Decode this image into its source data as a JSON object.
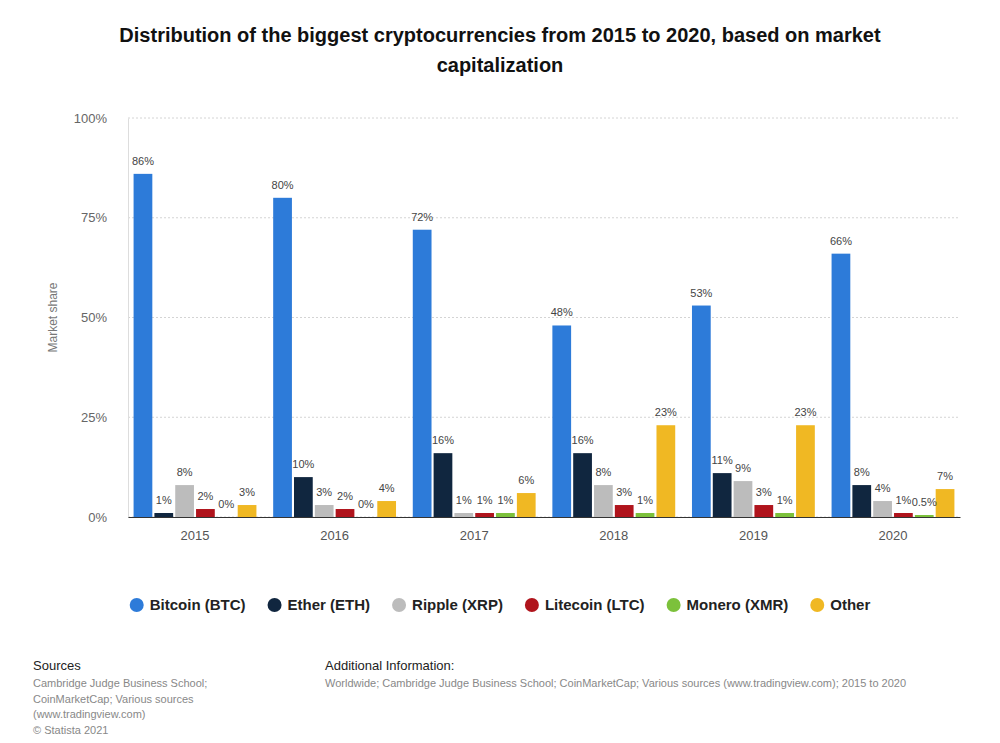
{
  "chart_data": {
    "type": "bar",
    "title": "Distribution of the biggest cryptocurrencies from 2015 to 2020, based on market capitalization",
    "y_label": "Market share",
    "categories": [
      "2015",
      "2016",
      "2017",
      "2018",
      "2019",
      "2020"
    ],
    "series": [
      {
        "name": "Bitcoin (BTC)",
        "color": "#2d7bd9",
        "values": [
          86,
          80,
          72,
          48,
          53,
          66
        ],
        "value_labels": [
          "86%",
          "80%",
          "72%",
          "48%",
          "53%",
          "66%"
        ]
      },
      {
        "name": "Ether (ETH)",
        "color": "#10263f",
        "values": [
          1,
          10,
          16,
          16,
          11,
          8
        ],
        "value_labels": [
          "1%",
          "10%",
          "16%",
          "16%",
          "11%",
          "8%"
        ]
      },
      {
        "name": "Ripple (XRP)",
        "color": "#bcbcbc",
        "values": [
          8,
          3,
          1,
          8,
          9,
          4
        ],
        "value_labels": [
          "8%",
          "3%",
          "1%",
          "8%",
          "9%",
          "4%"
        ]
      },
      {
        "name": "Litecoin (LTC)",
        "color": "#b0141c",
        "values": [
          2,
          2,
          1,
          3,
          3,
          1
        ],
        "value_labels": [
          "2%",
          "2%",
          "1%",
          "3%",
          "3%",
          "1%"
        ]
      },
      {
        "name": "Monero (XMR)",
        "color": "#7cc13b",
        "values": [
          0,
          0,
          1,
          1,
          1,
          0.5
        ],
        "value_labels": [
          "0%",
          "0%",
          "1%",
          "1%",
          "1%",
          "0.5%"
        ]
      },
      {
        "name": "Other",
        "color": "#f0b823",
        "values": [
          3,
          4,
          6,
          23,
          23,
          7
        ],
        "value_labels": [
          "3%",
          "4%",
          "6%",
          "23%",
          "23%",
          "7%"
        ]
      }
    ],
    "ylim": [
      0,
      100
    ],
    "yticks": [
      {
        "value": 0,
        "label": "0%"
      },
      {
        "value": 25,
        "label": "25%"
      },
      {
        "value": 50,
        "label": "50%"
      },
      {
        "value": 75,
        "label": "75%"
      },
      {
        "value": 100,
        "label": "100%"
      }
    ],
    "grid": true,
    "data_labels": true,
    "legend": "bottom",
    "sources": {
      "title": "Sources",
      "lines": [
        "Cambridge Judge Business School;",
        "CoinMarketCap; Various sources",
        "(www.tradingview.com)",
        "© Statista 2021"
      ]
    },
    "additional_info": {
      "title": "Additional Information:",
      "lines": [
        "Worldwide; Cambridge Judge Business School; CoinMarketCap; Various sources (www.tradingview.com); 2015 to 2020"
      ]
    }
  }
}
